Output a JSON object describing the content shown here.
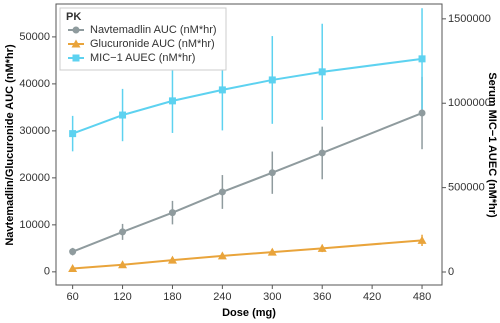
{
  "chart_data": {
    "type": "line",
    "x_label": "Dose (mg)",
    "y_label": "Navtemadlin/Glucuronide AUC (nM*hr)",
    "y2_label": "Serum MIC−1 AUEC (nM*hr)",
    "legend_title": "PK",
    "legend_position": "top-left",
    "x": [
      60,
      120,
      180,
      240,
      300,
      360,
      480
    ],
    "xlim": [
      40,
      504
    ],
    "xticks": [
      60,
      120,
      180,
      240,
      300,
      360,
      420,
      480
    ],
    "ylim": [
      -2800,
      57000
    ],
    "yticks": [
      0,
      10000,
      20000,
      30000,
      40000,
      50000
    ],
    "y2lim": [
      -77000,
      1588000
    ],
    "y2ticks": [
      0,
      500000,
      1000000,
      1500000
    ],
    "grid": false,
    "series": [
      {
        "name": "Navtemadlin AUC (nM*hr)",
        "color": "#8f9b9e",
        "marker": "circle",
        "values": [
          4300,
          8500,
          12600,
          17000,
          21100,
          25300,
          33800
        ],
        "errors": [
          800,
          1700,
          2500,
          3600,
          4500,
          5600,
          7700
        ]
      },
      {
        "name": "Glucuronide AUC (nM*hr)",
        "color": "#e9a43b",
        "marker": "triangle",
        "values": [
          700,
          1500,
          2500,
          3400,
          4200,
          5000,
          6700
        ],
        "errors": [
          200,
          300,
          400,
          500,
          600,
          800,
          1200
        ]
      },
      {
        "name": "MIC−1 AUEC (nM*hr)",
        "color": "#5dd2f0",
        "marker": "square",
        "axis": "y2",
        "values": [
          820000,
          930000,
          1014000,
          1079000,
          1138000,
          1186000,
          1263000
        ],
        "errors": [
          105000,
          155000,
          190000,
          240000,
          260000,
          285000,
          300000
        ]
      }
    ]
  }
}
